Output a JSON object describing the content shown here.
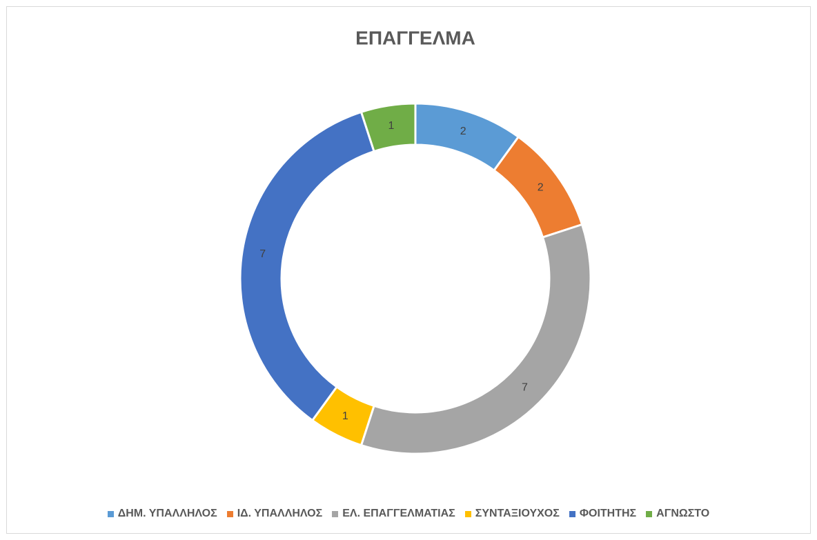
{
  "chart_data": {
    "type": "donut",
    "title": "ΕΠΑΓΓΕΛΜΑ",
    "categories": [
      "ΔΗΜ. ΥΠΑΛΛΗΛΟΣ",
      "ΙΔ. ΥΠΑΛΛΗΛΟΣ",
      "ΕΛ. ΕΠΑΓΓΕΛΜΑΤΙΑΣ",
      "ΣΥΝΤΑΞΙΟΥΧΟΣ",
      "ΦΟΙΤΗΤΗΣ",
      "ΑΓΝΩΣΤΟ"
    ],
    "values": [
      2,
      2,
      7,
      1,
      7,
      1
    ],
    "colors": [
      "#5b9bd5",
      "#ed7d31",
      "#a5a5a5",
      "#ffc000",
      "#4472c4",
      "#70ad47"
    ],
    "legend": "bottom"
  }
}
